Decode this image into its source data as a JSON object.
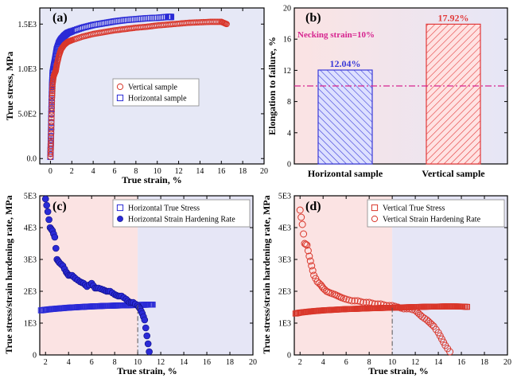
{
  "chart_data": [
    {
      "panel": "(a)",
      "type": "scatter",
      "xlabel": "True strain, %",
      "ylabel": "True stress, MPa",
      "xlim": [
        -1,
        20
      ],
      "ylim": [
        -60,
        1680
      ],
      "xticks": [
        0,
        2,
        4,
        6,
        8,
        10,
        12,
        14,
        16,
        18,
        20
      ],
      "yticks": [
        0,
        500,
        1000,
        1500
      ],
      "yticklabels": [
        "0.0",
        "5.0E2",
        "1.0E3",
        "1.5E3"
      ],
      "legend_position": "center-right",
      "series": [
        {
          "name": "Vertical sample",
          "marker": "circle",
          "color": "#d9362a",
          "x": [
            0,
            0.05,
            0.1,
            0.15,
            0.2,
            0.3,
            0.4,
            0.5,
            0.6,
            0.8,
            1.0,
            1.3,
            1.6,
            2,
            3,
            4,
            5,
            6,
            7,
            8,
            9,
            10,
            11,
            12,
            13,
            14,
            15,
            16,
            16.5
          ],
          "y": [
            20,
            200,
            450,
            680,
            830,
            920,
            950,
            980,
            1050,
            1150,
            1220,
            1270,
            1300,
            1320,
            1360,
            1390,
            1410,
            1430,
            1445,
            1460,
            1470,
            1485,
            1495,
            1505,
            1515,
            1520,
            1525,
            1525,
            1500
          ]
        },
        {
          "name": "Horizontal sample",
          "marker": "square",
          "color": "#2a2ad6",
          "x": [
            0,
            0.05,
            0.1,
            0.15,
            0.2,
            0.3,
            0.4,
            0.5,
            0.6,
            0.8,
            1.0,
            1.3,
            1.6,
            2,
            3,
            4,
            5,
            6,
            7,
            8,
            9,
            10,
            11,
            11.3
          ],
          "y": [
            20,
            250,
            550,
            800,
            950,
            1020,
            1080,
            1150,
            1220,
            1290,
            1330,
            1370,
            1400,
            1420,
            1460,
            1490,
            1510,
            1530,
            1545,
            1555,
            1565,
            1570,
            1580,
            1580
          ]
        }
      ]
    },
    {
      "panel": "(b)",
      "type": "bar",
      "ylabel": "Elongation to failure, %",
      "categories": [
        "Horizontal sample",
        "Vertical sample"
      ],
      "values": [
        12.04,
        17.92
      ],
      "data_labels": [
        "12.04%",
        "17.92%"
      ],
      "bar_colors": [
        "#3a3ad8",
        "#e23a3a"
      ],
      "ylim": [
        0,
        20
      ],
      "yticks": [
        0,
        4,
        8,
        12,
        16,
        20
      ],
      "reference_line": {
        "y": 10,
        "label": "Necking strain=10%",
        "color": "#d6248f"
      }
    },
    {
      "panel": "(c)",
      "type": "scatter",
      "xlabel": "True strain, %",
      "ylabel": "True stress/strain hardening rate, MPa",
      "xlim": [
        1.5,
        20
      ],
      "ylim": [
        0,
        5000
      ],
      "xticks": [
        2,
        4,
        6,
        8,
        10,
        12,
        14,
        16,
        18,
        20
      ],
      "yticks": [
        0,
        1000,
        2000,
        3000,
        4000,
        5000
      ],
      "yticklabels": [
        "0",
        "1E3",
        "2E3",
        "3E3",
        "4E3",
        "5E3"
      ],
      "necking_x": 10,
      "legend_position": "top-right",
      "series": [
        {
          "name": "Horizontal True Stress",
          "marker": "square",
          "color": "#2a2ad6",
          "x": [
            1.6,
            2,
            2.5,
            3,
            3.5,
            4,
            4.5,
            5,
            5.5,
            6,
            6.5,
            7,
            7.5,
            8,
            8.5,
            9,
            9.5,
            10,
            10.5,
            11,
            11.3
          ],
          "y": [
            1400,
            1420,
            1440,
            1455,
            1470,
            1485,
            1495,
            1505,
            1515,
            1525,
            1530,
            1540,
            1545,
            1550,
            1555,
            1560,
            1565,
            1570,
            1575,
            1580,
            1580
          ]
        },
        {
          "name": "Horizontal Strain Hardening Rate",
          "marker": "filled-circle",
          "color": "#2a2ad6",
          "x": [
            2,
            2.2,
            2.4,
            2.6,
            2.8,
            3,
            3.2,
            3.5,
            3.8,
            4,
            4.3,
            4.6,
            5,
            5.3,
            5.6,
            6,
            6.3,
            6.6,
            7,
            7.3,
            7.6,
            8,
            8.3,
            8.6,
            9,
            9.3,
            9.6,
            10,
            10.2,
            10.4,
            10.6,
            10.8,
            11
          ],
          "y": [
            4900,
            4500,
            4000,
            3900,
            3700,
            3000,
            2900,
            2800,
            2600,
            2500,
            2500,
            2400,
            2300,
            2250,
            2150,
            2250,
            2100,
            2100,
            2050,
            2000,
            2000,
            1900,
            1850,
            1850,
            1750,
            1650,
            1650,
            1550,
            1450,
            1300,
            1100,
            600,
            100
          ]
        }
      ]
    },
    {
      "panel": "(d)",
      "type": "scatter",
      "xlabel": "True strain, %",
      "ylabel": "True stress/strain hardening rate, MPa",
      "xlim": [
        1.5,
        20
      ],
      "ylim": [
        0,
        5000
      ],
      "xticks": [
        2,
        4,
        6,
        8,
        10,
        12,
        14,
        16,
        18,
        20
      ],
      "yticks": [
        0,
        1000,
        2000,
        3000,
        4000,
        5000
      ],
      "yticklabels": [
        "0",
        "1E3",
        "2E3",
        "3E3",
        "4E3",
        "5E3"
      ],
      "necking_x": 10,
      "legend_position": "top-right",
      "series": [
        {
          "name": "Vertical True Stress",
          "marker": "square",
          "color": "#d9362a",
          "x": [
            1.6,
            2,
            2.5,
            3,
            3.5,
            4,
            4.5,
            5,
            5.5,
            6,
            6.5,
            7,
            7.5,
            8,
            8.5,
            9,
            9.5,
            10,
            10.5,
            11,
            11.5,
            12,
            12.5,
            13,
            13.5,
            14,
            14.5,
            15,
            15.5,
            16,
            16.5
          ],
          "y": [
            1300,
            1330,
            1350,
            1370,
            1385,
            1400,
            1410,
            1420,
            1430,
            1440,
            1445,
            1450,
            1460,
            1465,
            1470,
            1475,
            1480,
            1485,
            1490,
            1495,
            1500,
            1505,
            1510,
            1515,
            1520,
            1520,
            1525,
            1525,
            1525,
            1520,
            1510
          ]
        },
        {
          "name": "Vertical Strain Hardening Rate",
          "marker": "circle",
          "color": "#d9362a",
          "x": [
            2,
            2.2,
            2.4,
            2.6,
            2.8,
            3,
            3.2,
            3.5,
            3.8,
            4,
            4.3,
            4.6,
            5,
            5.3,
            5.6,
            6,
            6.5,
            7,
            7.5,
            8,
            8.5,
            9,
            9.5,
            10,
            10.5,
            11,
            11.5,
            12,
            12.3,
            12.6,
            13,
            13.3,
            13.6,
            14,
            14.3,
            14.6,
            15
          ],
          "y": [
            4550,
            4100,
            3500,
            3450,
            3100,
            2800,
            2500,
            2300,
            2200,
            2100,
            2000,
            1950,
            1900,
            1850,
            1800,
            1750,
            1700,
            1700,
            1650,
            1650,
            1600,
            1600,
            1550,
            1550,
            1500,
            1450,
            1450,
            1400,
            1300,
            1200,
            1100,
            1000,
            900,
            700,
            500,
            300,
            100
          ]
        }
      ]
    }
  ]
}
